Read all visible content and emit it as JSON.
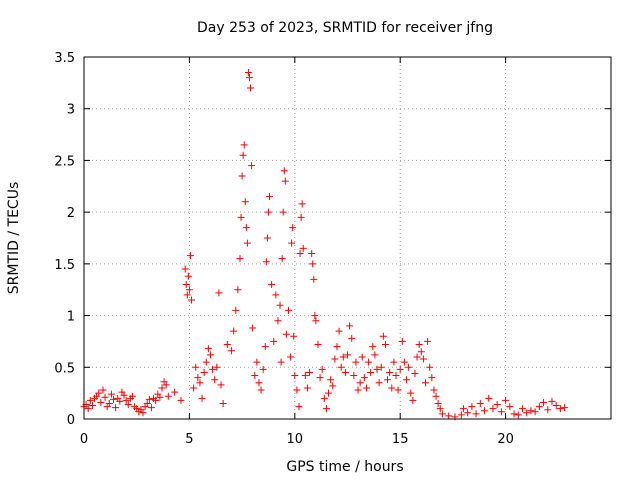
{
  "chart_data": {
    "type": "scatter",
    "title": "Day 253 of 2023, SRMTID for receiver jfng",
    "xlabel": "GPS time / hours",
    "ylabel": "SRMTID / TECUs",
    "xlim": [
      0,
      25
    ],
    "ylim": [
      0,
      3.5
    ],
    "xticks": [
      0,
      5,
      10,
      15,
      20
    ],
    "yticks": [
      0,
      0.5,
      1,
      1.5,
      2,
      2.5,
      3,
      3.5
    ],
    "xtick_labels": [
      "0",
      "5",
      "10",
      "15",
      "20"
    ],
    "ytick_labels": [
      "0",
      "0.5",
      "1",
      "1.5",
      "2",
      "2.5",
      "3",
      "3.5"
    ],
    "grid": true,
    "marker": "plus",
    "series": [
      {
        "name": "SRMTID",
        "color": "#ff0000",
        "x": [
          0.0,
          0.1,
          0.2,
          0.3,
          0.4,
          0.5,
          0.6,
          0.7,
          0.8,
          0.9,
          1.0,
          1.1,
          1.2,
          1.3,
          1.4,
          1.5,
          1.6,
          1.7,
          1.8,
          1.9,
          2.0,
          2.1,
          2.2,
          2.3,
          2.4,
          2.5,
          2.6,
          2.7,
          2.8,
          2.9,
          3.0,
          3.1,
          3.2,
          3.3,
          3.4,
          3.5,
          3.6,
          3.7,
          3.8,
          3.9,
          4.0,
          4.3,
          4.6,
          4.8,
          4.85,
          4.9,
          4.95,
          5.0,
          5.05,
          5.1,
          5.2,
          5.3,
          5.4,
          5.5,
          5.6,
          5.7,
          5.8,
          5.9,
          6.0,
          6.1,
          6.2,
          6.3,
          6.4,
          6.5,
          6.6,
          6.8,
          7.0,
          7.1,
          7.2,
          7.3,
          7.4,
          7.45,
          7.5,
          7.55,
          7.6,
          7.65,
          7.7,
          7.75,
          7.8,
          7.85,
          7.9,
          7.95,
          8.0,
          8.1,
          8.2,
          8.3,
          8.4,
          8.5,
          8.6,
          8.65,
          8.7,
          8.75,
          8.8,
          8.9,
          9.0,
          9.1,
          9.2,
          9.3,
          9.35,
          9.4,
          9.45,
          9.5,
          9.55,
          9.6,
          9.7,
          9.8,
          9.85,
          9.9,
          9.95,
          10.0,
          10.1,
          10.2,
          10.25,
          10.3,
          10.35,
          10.4,
          10.5,
          10.6,
          10.7,
          10.8,
          10.85,
          10.9,
          10.95,
          11.0,
          11.1,
          11.2,
          11.3,
          11.4,
          11.5,
          11.6,
          11.7,
          11.8,
          11.9,
          12.0,
          12.1,
          12.2,
          12.3,
          12.4,
          12.5,
          12.6,
          12.7,
          12.8,
          12.9,
          13.0,
          13.1,
          13.2,
          13.3,
          13.4,
          13.5,
          13.6,
          13.7,
          13.8,
          13.9,
          14.0,
          14.1,
          14.2,
          14.3,
          14.4,
          14.5,
          14.6,
          14.7,
          14.8,
          14.9,
          15.0,
          15.1,
          15.2,
          15.3,
          15.4,
          15.5,
          15.6,
          15.7,
          15.8,
          15.9,
          16.0,
          16.1,
          16.2,
          16.3,
          16.4,
          16.5,
          16.6,
          16.7,
          16.8,
          16.9,
          17.0,
          17.3,
          17.6,
          17.9,
          18.0,
          18.2,
          18.4,
          18.6,
          18.8,
          19.0,
          19.2,
          19.4,
          19.6,
          19.8,
          20.0,
          20.2,
          20.4,
          20.6,
          20.8,
          21.0,
          21.2,
          21.4,
          21.6,
          21.8,
          22.0,
          22.2,
          22.4,
          22.6,
          22.8
        ],
        "values": [
          0.12,
          0.14,
          0.1,
          0.18,
          0.13,
          0.2,
          0.22,
          0.25,
          0.16,
          0.28,
          0.21,
          0.12,
          0.15,
          0.24,
          0.19,
          0.11,
          0.2,
          0.17,
          0.26,
          0.23,
          0.18,
          0.14,
          0.2,
          0.22,
          0.12,
          0.1,
          0.07,
          0.09,
          0.06,
          0.12,
          0.15,
          0.19,
          0.11,
          0.2,
          0.18,
          0.24,
          0.21,
          0.3,
          0.36,
          0.33,
          0.22,
          0.26,
          0.18,
          1.45,
          1.3,
          1.2,
          1.38,
          1.25,
          1.58,
          1.15,
          0.3,
          0.5,
          0.4,
          0.35,
          0.2,
          0.45,
          0.55,
          0.68,
          0.62,
          0.48,
          0.38,
          0.5,
          1.22,
          0.33,
          0.15,
          0.72,
          0.66,
          0.85,
          1.05,
          1.25,
          1.55,
          1.95,
          2.35,
          2.55,
          2.65,
          2.1,
          1.85,
          1.7,
          3.35,
          3.3,
          3.2,
          2.45,
          0.88,
          0.42,
          0.55,
          0.35,
          0.28,
          0.48,
          0.7,
          1.52,
          1.75,
          2.0,
          2.15,
          1.3,
          0.75,
          1.2,
          0.95,
          1.1,
          0.55,
          1.55,
          2.0,
          2.4,
          2.3,
          0.82,
          1.05,
          0.6,
          1.7,
          1.85,
          0.8,
          0.42,
          0.28,
          0.12,
          1.6,
          1.95,
          2.08,
          1.65,
          0.42,
          0.3,
          0.45,
          1.6,
          1.5,
          1.35,
          1.0,
          0.95,
          0.72,
          0.4,
          0.48,
          0.2,
          0.1,
          0.25,
          0.38,
          0.32,
          0.58,
          0.7,
          0.85,
          0.5,
          0.6,
          0.45,
          0.62,
          0.9,
          0.78,
          0.42,
          0.55,
          0.28,
          0.35,
          0.6,
          0.4,
          0.3,
          0.55,
          0.45,
          0.7,
          0.62,
          0.48,
          0.35,
          0.5,
          0.8,
          0.72,
          0.38,
          0.45,
          0.3,
          0.55,
          0.42,
          0.28,
          0.48,
          0.75,
          0.55,
          0.38,
          0.5,
          0.25,
          0.18,
          0.44,
          0.6,
          0.72,
          0.65,
          0.58,
          0.35,
          0.75,
          0.5,
          0.4,
          0.28,
          0.22,
          0.15,
          0.1,
          0.05,
          0.03,
          0.02,
          0.04,
          0.1,
          0.06,
          0.12,
          0.05,
          0.15,
          0.08,
          0.2,
          0.1,
          0.14,
          0.07,
          0.18,
          0.12,
          0.05,
          0.04,
          0.1,
          0.06,
          0.08,
          0.07,
          0.12,
          0.16,
          0.09,
          0.17,
          0.13,
          0.1,
          0.11
        ]
      }
    ]
  }
}
